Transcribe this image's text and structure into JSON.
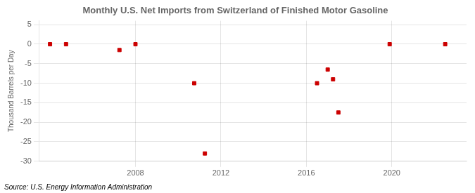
{
  "chart_data": {
    "type": "scatter",
    "title": "Monthly U.S. Net Imports from Switzerland of Finished Motor Gasoline",
    "y_label": "Thousand Barrels per Day",
    "annotations": [
      "Source: U.S. Energy Information Administration"
    ],
    "x": [
      2004.0,
      2004.75,
      2007.25,
      2008.0,
      2010.75,
      2011.25,
      2016.5,
      2017.0,
      2017.25,
      2017.5,
      2019.9,
      2022.5
    ],
    "values": [
      0,
      0,
      -1.5,
      0,
      -10,
      -28,
      -10,
      -6.5,
      -9.0,
      -17.5,
      0,
      0
    ],
    "color": "#cc0000",
    "marker": "square",
    "xlim": [
      2003.5,
      2023.5
    ],
    "xticks": [
      2008,
      2012,
      2016,
      2020
    ],
    "ylim": [
      -30,
      6
    ],
    "yticks": [
      5,
      0,
      -5,
      -10,
      -15,
      -20,
      -25,
      -30
    ],
    "grid": true
  }
}
